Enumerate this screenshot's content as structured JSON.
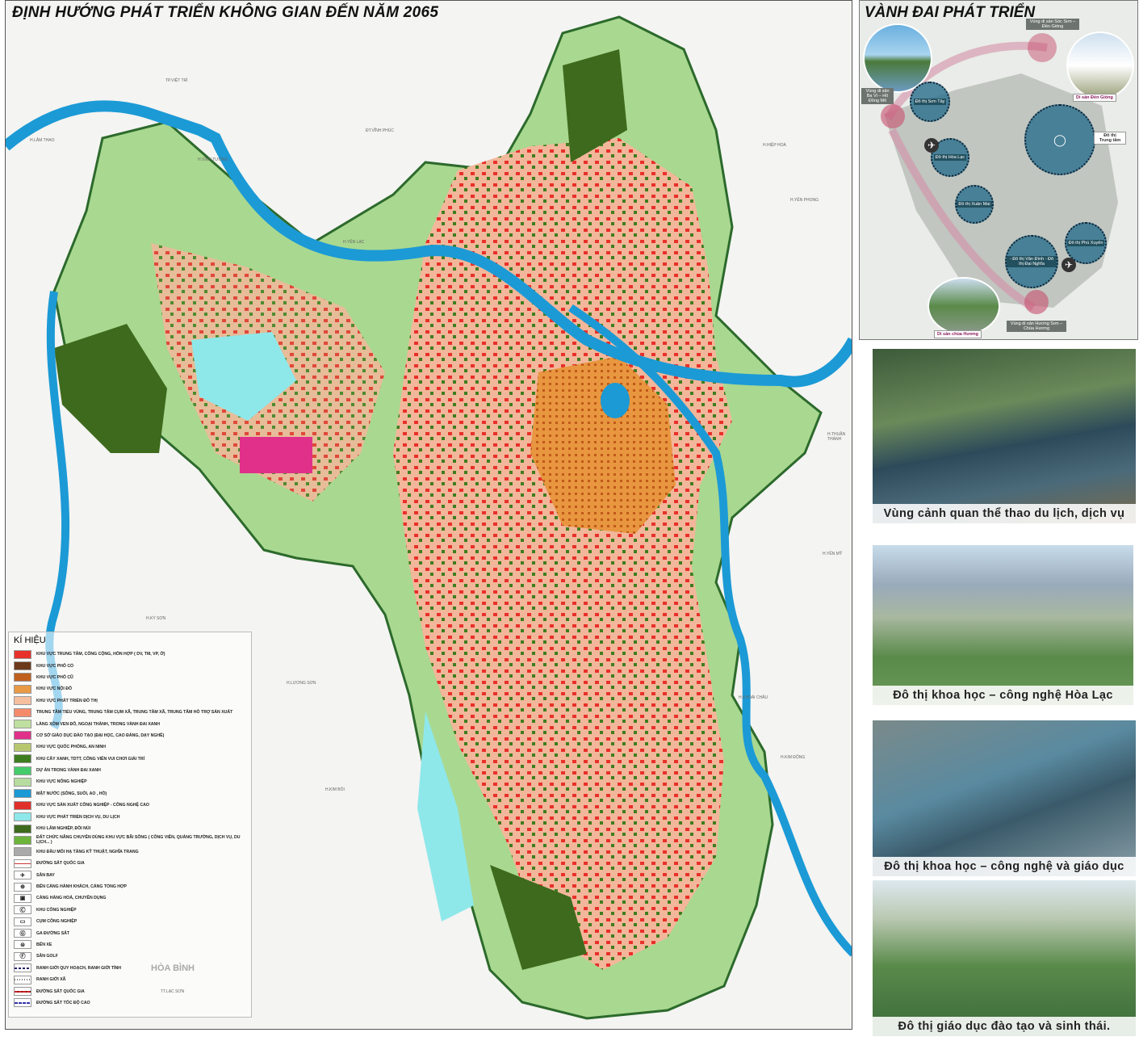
{
  "map": {
    "title": "ĐỊNH HƯỚNG PHÁT TRIỂN KHÔNG GIAN ĐẾN NĂM 2065",
    "places": [
      "TP.VIỆT TRÌ",
      "H.LÂM THAO",
      "H.VĨNH TƯỜNG",
      "ĐT.VĨNH PHÚC",
      "H.YÊN LẠC",
      "H.YÊN PHONG",
      "H.HIỆP HOÀ",
      "H.THUẬN THÀNH",
      "H.YÊN MỸ",
      "H.KHOÁI CHÂU",
      "H.KIM ĐỘNG",
      "H.LƯƠNG SƠN",
      "H.KIM BÔI",
      "H.KỲ SƠN",
      "TT.LẠC SƠN"
    ],
    "region_label": "HÒA BÌNH"
  },
  "legend": {
    "title": "KÍ HIỆU",
    "items": [
      {
        "label": "KHU VỰC TRUNG TÂM, CÔNG CỘNG, HỖN HỢP ( DV, TM, VP, Ở)",
        "color": "#e8302a"
      },
      {
        "label": "KHU VỰC PHỐ CỔ",
        "color": "#6b3a1a"
      },
      {
        "label": "KHU VỰC PHỐ CŨ",
        "color": "#c0601e"
      },
      {
        "label": "KHU VỰC NỘI ĐÔ",
        "color": "#e89a45"
      },
      {
        "label": "KHU VỰC PHÁT TRIỂN ĐÔ THỊ",
        "color": "#f5bfa0"
      },
      {
        "label": "TRUNG TÂM TIỂU VÙNG, TRUNG TÂM CỤM XÃ, TRUNG TÂM XÃ, TRUNG TÂM HỖ TRỢ SẢN XUẤT",
        "color": "#f58a6a"
      },
      {
        "label": "LÀNG XÓM VEN ĐÔ, NGOẠI THÀNH, TRONG VÀNH ĐAI XANH",
        "color": "#bfe0a0"
      },
      {
        "label": "CƠ SỞ GIÁO DỤC ĐÀO TẠO (ĐẠI HỌC, CAO ĐẲNG, DẠY NGHỀ)",
        "color": "#e0308a"
      },
      {
        "label": "KHU VỰC QUỐC PHÒNG, AN NINH",
        "color": "#b5c870"
      },
      {
        "label": "KHU CÂY XANH, TDTT, CÔNG VIÊN VUI CHƠI GIẢI TRÍ",
        "color": "#3e7d1e"
      },
      {
        "label": "DỰ ÁN TRONG VÀNH ĐAI XANH",
        "color": "#45cc6a"
      },
      {
        "label": "KHU VỰC NÔNG NGHIỆP",
        "color": "#b8dca0"
      },
      {
        "label": "MẶT NƯỚC (SÔNG, SUỐI, AO , HỒ)",
        "color": "#1b9ad6"
      },
      {
        "label": "KHU VỰC SẢN XUẤT CÔNG NGHIỆP - CÔNG NGHỆ CAO",
        "color": "#e0302a"
      },
      {
        "label": "KHU VỰC PHÁT TRIỂN DỊCH VỤ, DU LỊCH",
        "color": "#8ee8ea"
      },
      {
        "label": "KHU LÂM NGHIỆP, ĐỒI NÚI",
        "color": "#3d6a1c"
      },
      {
        "label": "ĐẤT CHỨC NĂNG CHUYÊN DÙNG KHU VỰC BÃI SÔNG ( CÔNG VIÊN, QUẢNG TRƯỜNG, DỊCH VỤ, DU LỊCH... )",
        "color": "#6cb43a"
      },
      {
        "label": "KHU ĐẦU MỐI HẠ TẦNG KỸ THUẬT, NGHĨA TRANG",
        "color": "#aaaaaa"
      },
      {
        "label": "ĐƯỜNG SẮT QUỐC GIA",
        "symbol": "line-red"
      },
      {
        "label": "SÂN BAY",
        "symbol": "✈"
      },
      {
        "label": "BẾN CẢNG HÀNH KHÁCH, CẢNG TỔNG HỢP",
        "symbol": "⊕"
      },
      {
        "label": "CẢNG HÀNG HOÁ, CHUYÊN DỤNG",
        "symbol": "▣"
      },
      {
        "label": "KHU CÔNG NGHIỆP",
        "symbol": "Ⓒ"
      },
      {
        "label": "CỤM CÔNG NGHIỆP",
        "symbol": "▭"
      },
      {
        "label": "GA ĐƯỜNG SẮT",
        "symbol": "Ⓖ"
      },
      {
        "label": "BẾN XE",
        "symbol": "⊜"
      },
      {
        "label": "SÂN GOLF",
        "symbol": "Ⓕ"
      },
      {
        "label": "RANH GIỚI QUY HOẠCH, RANH GIỚI TỈNH",
        "symbol": "dash-navy"
      },
      {
        "label": "RANH GIỚI XÃ",
        "symbol": "dot-grey"
      },
      {
        "label": "ĐƯỜNG SẮT QUỐC GIA",
        "symbol": "rail-red"
      },
      {
        "label": "ĐƯỜNG SẮT TỐC ĐỘ CAO",
        "symbol": "rail-blue"
      }
    ]
  },
  "belt": {
    "title": "VÀNH ĐAI PHÁT TRIỂN",
    "nodes": [
      "Đô thị Sơn Tây",
      "Đô thị Hòa Lạc",
      "Đô thị Xuân Mai",
      "- Đô thị Vân Đình - Đô thị Đại Nghĩa",
      "Đô thị Phú Xuyên"
    ],
    "center_label": "Đô thị Trung tâm",
    "heritage": [
      "Vùng di sản Sóc Sơn – Đền Gióng",
      "Vùng di sản Ba Vì – Hồ Đồng Mô",
      "Vùng di sản Hương Sơn – Chùa Hương"
    ],
    "photo_labels": [
      "Di sản Đền Gióng",
      "Di sản chùa Hương"
    ]
  },
  "photos": [
    {
      "caption": "Vùng cảnh quan thể thao du lịch, dịch vụ"
    },
    {
      "caption": "Đô thị khoa học – công nghệ Hòa Lạc"
    },
    {
      "caption": "Đô thị khoa học – công nghệ và giáo dục"
    },
    {
      "caption": "Đô thị giáo dục đào tạo và sinh thái."
    }
  ]
}
